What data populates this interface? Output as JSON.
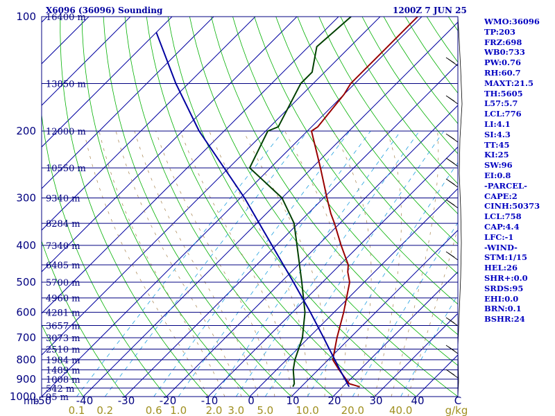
{
  "header": {
    "station": "X6096 (36096) Sounding",
    "time": "1200Z  7 JUN 25"
  },
  "stats": [
    "WMO:36096",
    "TP:203",
    "FRZ:698",
    "WB0:733",
    "PW:0.76",
    "RH:60.7",
    "MAXT:21.5",
    "TH:5605",
    "L57:5.7",
    "LCL:776",
    "LI:4.1",
    "SI:4.3",
    "TT:45",
    "KI:25",
    "SW:96",
    "EI:0.8",
    "-PARCEL-",
    "CAPE:2",
    "CINH:50373",
    "LCL:758",
    "CAP:4.4",
    "LFC:-1",
    "-WIND-",
    "STM:1/15",
    "HEL:26",
    "SHR+:0.0",
    "SRDS:95",
    "EHI:0.0",
    "BRN:0.1",
    "BSHR:24"
  ],
  "chart_data": {
    "type": "line",
    "subtype": "skew-T log-P sounding",
    "y_axis": {
      "unit_label": "mb",
      "range": [
        1000,
        100
      ],
      "scale": "log",
      "pressure_ticks": [
        100,
        200,
        300,
        400,
        500,
        600,
        700,
        800,
        900,
        1000
      ]
    },
    "x_axis": {
      "unit_label": "C",
      "range": [
        -50,
        50
      ],
      "temperature_ticks": [
        "-50",
        "-40",
        "-30",
        "-20",
        "-10",
        "0",
        "10",
        "20",
        "30",
        "40"
      ]
    },
    "mixing_ratio_axis": {
      "unit_label": "g/kg",
      "labels": [
        "0.1",
        "0.2",
        "0.6",
        "1.0",
        "2.0",
        "3.0",
        "5.0",
        "10.0",
        "20.0",
        "40.0"
      ]
    },
    "height_levels": [
      {
        "p": 100,
        "label": "16400 m"
      },
      {
        "p": 150,
        "label": "13850 m"
      },
      {
        "p": 200,
        "label": "12000 m"
      },
      {
        "p": 250,
        "label": "10550 m"
      },
      {
        "p": 300,
        "label": "9340 m"
      },
      {
        "p": 350,
        "label": "8284 m"
      },
      {
        "p": 400,
        "label": "7340 m"
      },
      {
        "p": 450,
        "label": "6485 m"
      },
      {
        "p": 500,
        "label": "5700 m"
      },
      {
        "p": 550,
        "label": "4960 m"
      },
      {
        "p": 600,
        "label": "4281 m"
      },
      {
        "p": 650,
        "label": "3657 m"
      },
      {
        "p": 700,
        "label": "3073 m"
      },
      {
        "p": 750,
        "label": "2510 m"
      },
      {
        "p": 800,
        "label": "1984 m"
      },
      {
        "p": 850,
        "label": "1489 m"
      },
      {
        "p": 900,
        "label": "1008 m"
      },
      {
        "p": 950,
        "label": "542 m"
      },
      {
        "p": 1000,
        "label": "95 m"
      }
    ],
    "series": [
      {
        "key": "temperature",
        "color": "#990000",
        "points": [
          [
            942,
            24.0
          ],
          [
            925,
            20.8
          ],
          [
            850,
            15.0
          ],
          [
            800,
            11.1
          ],
          [
            700,
            6.8
          ],
          [
            600,
            2.3
          ],
          [
            500,
            -3.5
          ],
          [
            470,
            -6.4
          ],
          [
            450,
            -8.0
          ],
          [
            400,
            -14.4
          ],
          [
            350,
            -21.3
          ],
          [
            330,
            -24.5
          ],
          [
            300,
            -29.2
          ],
          [
            250,
            -38.0
          ],
          [
            200,
            -49.0
          ],
          [
            195,
            -48.5
          ],
          [
            160,
            -50.0
          ],
          [
            150,
            -51.0
          ],
          [
            130,
            -51.0
          ],
          [
            105,
            -51.0
          ],
          [
            100,
            -51.0
          ]
        ]
      },
      {
        "key": "dewpoint",
        "color": "#004000",
        "points": [
          [
            942,
            8.0
          ],
          [
            925,
            7.6
          ],
          [
            850,
            4.0
          ],
          [
            800,
            2.0
          ],
          [
            700,
            -1.5
          ],
          [
            600,
            -7.0
          ],
          [
            500,
            -15.0
          ],
          [
            400,
            -25.0
          ],
          [
            350,
            -31.0
          ],
          [
            300,
            -40.0
          ],
          [
            250,
            -55.0
          ],
          [
            200,
            -59.5
          ],
          [
            195,
            -58.0
          ],
          [
            150,
            -63.0
          ],
          [
            140,
            -63.0
          ],
          [
            120,
            -68.0
          ],
          [
            100,
            -67.0
          ]
        ]
      },
      {
        "key": "parcel",
        "color": "#0000a0",
        "points": [
          [
            942,
            21.5
          ],
          [
            900,
            18.7
          ],
          [
            850,
            15.2
          ],
          [
            800,
            11.6
          ],
          [
            750,
            7.7
          ],
          [
            700,
            3.6
          ],
          [
            600,
            -5.7
          ],
          [
            500,
            -17.0
          ],
          [
            400,
            -31.0
          ],
          [
            300,
            -49.0
          ],
          [
            200,
            -76.0
          ],
          [
            150,
            -93.0
          ],
          [
            110,
            -110.0
          ]
        ]
      }
    ],
    "grid": true,
    "legend": "none"
  }
}
